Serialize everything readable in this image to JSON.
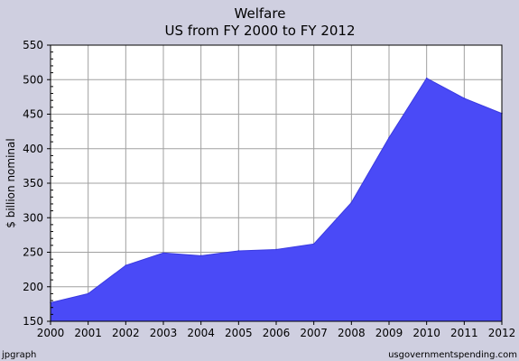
{
  "chart_data": {
    "type": "area",
    "title": "Welfare",
    "subtitle": "US from FY 2000 to FY 2012",
    "xlabel": "",
    "ylabel": "$ billion nominal",
    "x": [
      "2000",
      "2001",
      "2002",
      "2003",
      "2004",
      "2005",
      "2006",
      "2007",
      "2008",
      "2009",
      "2010",
      "2011",
      "2012"
    ],
    "series": [
      {
        "values": [
          177,
          190,
          231,
          249,
          245,
          252,
          254,
          262,
          322,
          416,
          502,
          473,
          451
        ],
        "color": "#4a4af7"
      }
    ],
    "ylim": [
      150,
      550
    ],
    "yticks": [
      "150",
      "200",
      "250",
      "300",
      "350",
      "400",
      "450",
      "500",
      "550"
    ],
    "grid": true,
    "colors": {
      "background": "#cfcfe0",
      "plot_area": "#ffffff",
      "gridline": "#a0a0a0",
      "fill": "#4a4af7"
    }
  },
  "footer": {
    "left": "jpgraph",
    "right": "usgovernmentspending.com"
  }
}
